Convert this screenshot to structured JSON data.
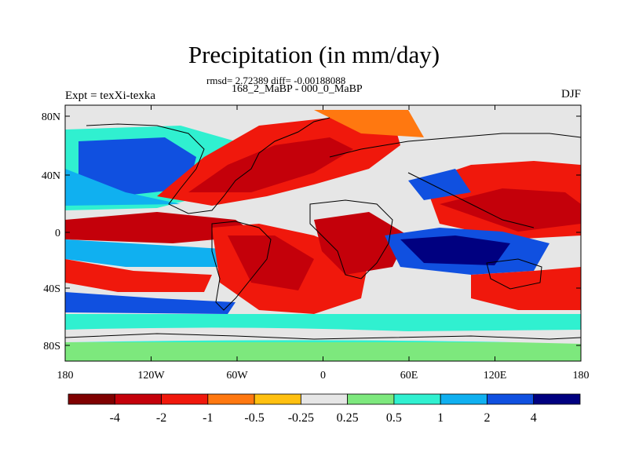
{
  "header": {
    "title": "Precipitation (in mm/day)",
    "stats": "rmsd= 2.72389 diff= -0.00188088",
    "period": "168_2_MaBP - 000_0_MaBP",
    "experiment": "Expt = texXi-texka",
    "season": "DJF"
  },
  "axes": {
    "lat_labels": [
      "80N",
      "40N",
      "0",
      "40S",
      "80S"
    ],
    "lon_labels": [
      "180",
      "120W",
      "60W",
      "0",
      "60E",
      "120E",
      "180"
    ]
  },
  "colorbar": {
    "colors": [
      "#7f0000",
      "#c4000a",
      "#f0180c",
      "#ff7810",
      "#ffc010",
      "#e6e6e6",
      "#7de87d",
      "#30f0d0",
      "#10b0f0",
      "#1050e0",
      "#000080"
    ],
    "labels": [
      "-4",
      "-2",
      "-1",
      "-0.5",
      "-0.25",
      "0.25",
      "0.5",
      "1",
      "2",
      "4"
    ]
  }
}
